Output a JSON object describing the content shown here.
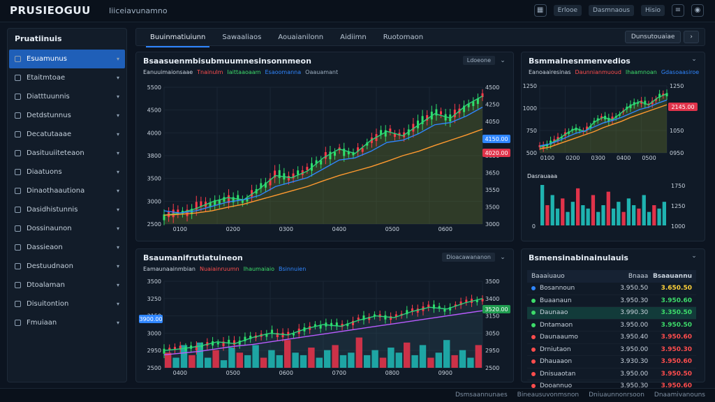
{
  "app": {
    "title": "PRUSIEOGUU",
    "subtitle": "Iiiceiavunamno"
  },
  "topbar": {
    "chips": [
      "Erlooe",
      "Dasmnaous",
      "Hisio"
    ],
    "icons": [
      "grid-icon",
      "menu-icon",
      "user-icon",
      "settings-icon"
    ]
  },
  "sidebar": {
    "title": "Pruatiinuis",
    "items": [
      {
        "label": "Esuamunus",
        "active": true
      },
      {
        "label": "Etaitmtoae",
        "active": false
      },
      {
        "label": "Diatttuunnis",
        "active": false
      },
      {
        "label": "Detdstunnus",
        "active": false
      },
      {
        "label": "Decatutaaae",
        "active": false
      },
      {
        "label": "Dasituuiiteteaon",
        "active": false
      },
      {
        "label": "Diaatuons",
        "active": false
      },
      {
        "label": "Dinaothaautiona",
        "active": false
      },
      {
        "label": "Dasidhistunnis",
        "active": false
      },
      {
        "label": "Dossinaunon",
        "active": false
      },
      {
        "label": "Dassieaon",
        "active": false
      },
      {
        "label": "Destuudnaon",
        "active": false
      },
      {
        "label": "Dtoalaman",
        "active": false
      },
      {
        "label": "Disuitontion",
        "active": false
      },
      {
        "label": "Fmuiaan",
        "active": false
      }
    ]
  },
  "tabs": {
    "items": [
      "Buuinmatiuiunn",
      "Sawaaliaos",
      "Aouaianilonn",
      "Aidiimn",
      "Ruotomaon"
    ],
    "active_index": 0,
    "right_button": "Dunsutouaiae"
  },
  "main_chart": {
    "title": "Bsaasuenmbisubmuumnesinsonnmeon",
    "legend": [
      {
        "text": "Eanuuimaionsaae",
        "color": "#c9d3de"
      },
      {
        "text": "Tnainulm",
        "color": "#ff4d4d"
      },
      {
        "text": "Iaittaaoaam",
        "color": "#3ddc6a"
      },
      {
        "text": "Esaoomanna",
        "color": "#2f86ff"
      },
      {
        "text": "Oaauamant",
        "color": "#9fb0c2"
      }
    ],
    "chip": "Ldoeone",
    "price_tag_blue": "4150.00",
    "price_tag_red": "4020.00"
  },
  "side_chart": {
    "title": "Bsmmainesnmenvedios",
    "legend": [
      {
        "text": "Eanoaairesinas",
        "color": "#c9d3de"
      },
      {
        "text": "Daunnianmuoud",
        "color": "#ff4d4d"
      },
      {
        "text": "Ihaamnoan",
        "color": "#3ddc6a"
      },
      {
        "text": "Gdasoaasiroe",
        "color": "#2f86ff"
      }
    ],
    "price_tag_red": "2145.00",
    "volume_title": "Dasrauaaa"
  },
  "bottom_chart": {
    "title": "Bsaumanifrutiatuineon",
    "legend": [
      {
        "text": "Eamaunaainmbian",
        "color": "#c9d3de"
      },
      {
        "text": "Nuaiainruumn",
        "color": "#ff4d4d"
      },
      {
        "text": "Ihaumaiaio",
        "color": "#3ddc6a"
      },
      {
        "text": "Bsinnuien",
        "color": "#2f86ff"
      }
    ],
    "chip": "Dioacawananon",
    "price_tag_blue": "3900.00",
    "price_tag_green": "3520.00"
  },
  "watchlist": {
    "title": "Bsmensinabinainulauis",
    "columns": [
      "Baaaiuauo",
      "Bnaaa",
      "Bsaauannu"
    ],
    "rows": [
      {
        "name": "Bosannoun",
        "price": "3.950.50",
        "change": "3.650.50",
        "dot": "#2f86ff",
        "tone": "hl-yellow",
        "highlight": false
      },
      {
        "name": "Buaanaun",
        "price": "3.950.30",
        "change": "3.950.60",
        "dot": "#3ddc6a",
        "tone": "pos",
        "highlight": false
      },
      {
        "name": "Daunaao",
        "price": "3.990.30",
        "change": "3.350.50",
        "dot": "#3ddc6a",
        "tone": "pos",
        "highlight": true
      },
      {
        "name": "Dntamaon",
        "price": "3.950.00",
        "change": "3.950.50",
        "dot": "#3ddc6a",
        "tone": "pos",
        "highlight": false
      },
      {
        "name": "Daunaaumo",
        "price": "3.950.40",
        "change": "3.950.60",
        "dot": "#ff4d4d",
        "tone": "neg",
        "highlight": false
      },
      {
        "name": "Drniutaon",
        "price": "3.950.00",
        "change": "3.950.30",
        "dot": "#ff4d4d",
        "tone": "neg",
        "highlight": false
      },
      {
        "name": "Dhauaaon",
        "price": "3.930.30",
        "change": "3.950.60",
        "dot": "#ff4d4d",
        "tone": "neg",
        "highlight": false
      },
      {
        "name": "Dnisuaotan",
        "price": "3.950.00",
        "change": "3.950.50",
        "dot": "#ff4d4d",
        "tone": "neg",
        "highlight": false
      },
      {
        "name": "Dooannuo",
        "price": "3.950.30",
        "change": "3.950.60",
        "dot": "#ff4d4d",
        "tone": "neg",
        "highlight": false
      }
    ]
  },
  "statusbar": {
    "items": [
      "Dsmsaannunaes",
      "Bineausuvonmsnon",
      "Dniuaunnonrsoon",
      "Dnaamivanouns"
    ]
  },
  "chart_data": [
    {
      "type": "line",
      "title": "Bsaasuenmbisubmuumnesinsonnmeon",
      "y_ticks": [
        "5500",
        "4500",
        "4000",
        "3800",
        "3500",
        "3000",
        "2500"
      ],
      "y_ticks_right": [
        "4500",
        "4250",
        "4050",
        "3950",
        "3850",
        "3650",
        "3550",
        "3500",
        "3000"
      ],
      "x_ticks": [
        "0100",
        "0200",
        "0300",
        "0400",
        "0500",
        "0600"
      ],
      "series": [
        {
          "values": [
            2600,
            2650,
            2750,
            2900,
            3000,
            2950,
            3200,
            3500,
            3450,
            3600,
            3900,
            4100,
            4000,
            4300,
            4500,
            4400,
            4650,
            4900,
            4800,
            5100,
            5300
          ]
        },
        {
          "values": [
            2700,
            2650,
            2700,
            2800,
            2900,
            2950,
            3050,
            3250,
            3350,
            3450,
            3650,
            3850,
            3900,
            4050,
            4250,
            4300,
            4450,
            4650,
            4700,
            4850,
            5050
          ]
        },
        {
          "values": [
            2600,
            2620,
            2650,
            2700,
            2780,
            2850,
            2950,
            3050,
            3150,
            3250,
            3380,
            3500,
            3600,
            3700,
            3820,
            3950,
            4050,
            4180,
            4300,
            4420,
            4550
          ]
        }
      ],
      "ylim": [
        2400,
        5500
      ]
    },
    {
      "type": "line",
      "title": "Bsmmainesnmenvedios",
      "y_ticks": [
        "1250",
        "1000",
        "750",
        "500"
      ],
      "y_ticks_right": [
        "1250",
        "1150",
        "1050",
        "0950"
      ],
      "x_ticks": [
        "0100",
        "0200",
        "0300",
        "0400",
        "0500"
      ],
      "series": [
        {
          "values": [
            520,
            560,
            620,
            700,
            760,
            720,
            840,
            900,
            870,
            960,
            1050,
            1100,
            1060,
            1150,
            1200
          ]
        },
        {
          "values": [
            540,
            560,
            600,
            650,
            700,
            730,
            780,
            830,
            860,
            900,
            950,
            1000,
            1030,
            1080,
            1120
          ]
        },
        {
          "values": [
            500,
            520,
            560,
            600,
            640,
            680,
            720,
            770,
            810,
            850,
            900,
            940,
            980,
            1020,
            1060
          ]
        }
      ],
      "volume": [
        60,
        30,
        45,
        25,
        40,
        20,
        35,
        55,
        30,
        25,
        45,
        20,
        30,
        50,
        25,
        35,
        20,
        40,
        30,
        25,
        45,
        20,
        30,
        25,
        35
      ],
      "volume_ticks": [
        "1750",
        "1250",
        "1000"
      ],
      "ylim": [
        450,
        1300
      ]
    },
    {
      "type": "bar",
      "title": "Bsaumanifrutiatuineon",
      "y_ticks": [
        "3500",
        "3250",
        "3150",
        "3000",
        "2950",
        "2500"
      ],
      "y_ticks_right": [
        "3500",
        "3400",
        "3150",
        "3050",
        "2950",
        "2500"
      ],
      "x_ticks": [
        "0400",
        "0500",
        "0600",
        "0700",
        "0800",
        "0900"
      ],
      "series": [
        {
          "values": [
            2800,
            2820,
            2850,
            2900,
            2880,
            2950,
            3000,
            2980,
            3050,
            3100,
            3080,
            3150,
            3200,
            3180,
            3250,
            3300,
            3280,
            3350,
            3400
          ]
        },
        {
          "values": [
            2750,
            2770,
            2790,
            2820,
            2850,
            2870,
            2900,
            2930,
            2960,
            2990,
            3020,
            3050,
            3080,
            3110,
            3140,
            3170,
            3200,
            3230,
            3260
          ]
        }
      ],
      "volume": [
        30,
        20,
        45,
        25,
        50,
        20,
        35,
        15,
        40,
        30,
        25,
        45,
        20,
        35,
        25,
        55,
        30,
        25,
        40,
        20,
        35,
        45,
        25,
        30,
        60,
        25,
        35,
        20,
        40,
        30,
        50,
        25,
        45,
        20,
        30,
        55,
        25,
        35,
        20,
        45
      ],
      "ylim": [
        2600,
        3600
      ]
    }
  ]
}
